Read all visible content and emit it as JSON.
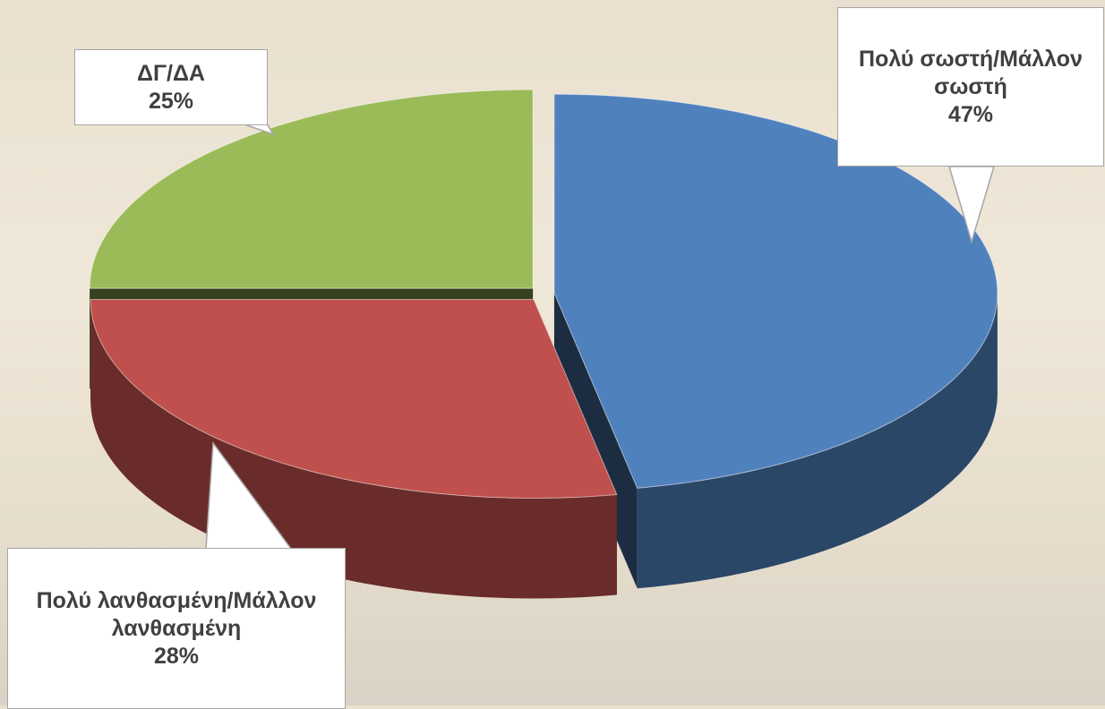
{
  "chart_data": {
    "type": "pie3d",
    "categories": [
      "Πολύ σωστή/Μάλλον σωστή",
      "Πολύ λανθασμένη/Μάλλον λανθασμένη",
      "ΔΓ/ΔΑ"
    ],
    "values": [
      47,
      28,
      25
    ],
    "value_labels": [
      "47%",
      "28%",
      "25%"
    ],
    "colors": [
      "#4f81bd",
      "#c0504d",
      "#9bbb59"
    ]
  }
}
